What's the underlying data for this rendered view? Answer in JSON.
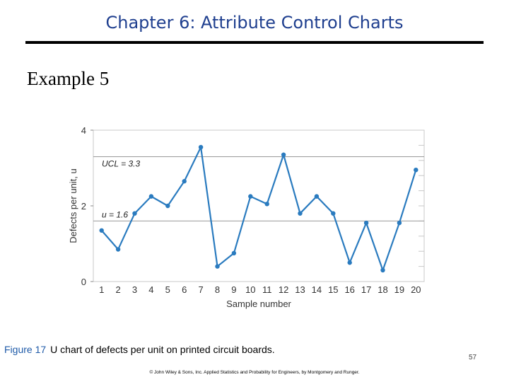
{
  "slide": {
    "title": "Chapter 6: Attribute Control Charts",
    "heading": "Example 5",
    "caption_label": "Figure 17",
    "caption_text": "U chart of defects per unit on printed circuit boards.",
    "copyright": "© John Wiley & Sons, Inc.  Applied Statistics and Probability for Engineers, by Montgomery and Runger.",
    "page_number": "57"
  },
  "chart_data": {
    "type": "line",
    "title": "",
    "xlabel": "Sample number",
    "ylabel": "Defects per unit, u",
    "x": [
      1,
      2,
      3,
      4,
      5,
      6,
      7,
      8,
      9,
      10,
      11,
      12,
      13,
      14,
      15,
      16,
      17,
      18,
      19,
      20
    ],
    "x_tick_labels": [
      "1",
      "2",
      "3",
      "4",
      "5",
      "6",
      "7",
      "8",
      "9",
      "10",
      "11",
      "12",
      "13",
      "14",
      "15",
      "16",
      "17",
      "18",
      "19",
      "20"
    ],
    "series": [
      {
        "values": [
          1.35,
          0.85,
          1.8,
          2.25,
          2.0,
          2.65,
          3.55,
          0.4,
          0.75,
          2.25,
          2.05,
          3.35,
          1.8,
          2.25,
          1.8,
          0.5,
          1.55,
          0.3,
          1.55,
          2.95
        ]
      }
    ],
    "ucl": 3.3,
    "ucl_label": "UCL = 3.3",
    "center_line": 1.6,
    "center_label": "u = 1.6",
    "y_ticks": [
      0,
      2,
      4
    ],
    "ylim": [
      0,
      4
    ],
    "xlim": [
      0.5,
      20.5
    ],
    "color": "#2a7bbf"
  }
}
